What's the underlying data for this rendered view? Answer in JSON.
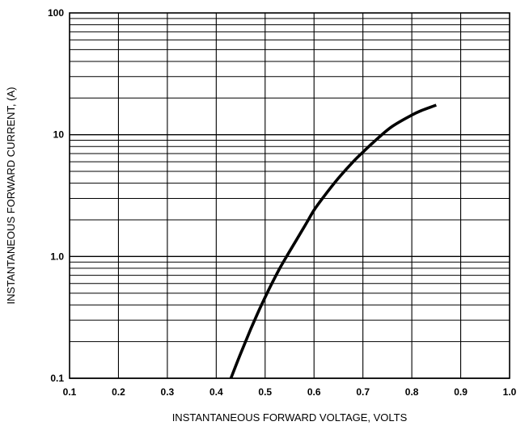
{
  "chart_data": {
    "type": "line",
    "xlabel": "INSTANTANEOUS FORWARD VOLTAGE, VOLTS",
    "ylabel": "INSTANTANEOUS  FORWARD CURRENT, (A)",
    "xlim": [
      0.1,
      1.0
    ],
    "ylim": [
      0.1,
      100
    ],
    "yscale": "log",
    "grid": true,
    "x_ticks": [
      "0.1",
      "0.2",
      "0.3",
      "0.4",
      "0.5",
      "0.6",
      "0.7",
      "0.8",
      "0.9",
      "1.0"
    ],
    "y_ticks": [
      {
        "value": 0.1,
        "label": "0.1"
      },
      {
        "value": 1,
        "label": "1.0"
      },
      {
        "value": 10,
        "label": "10"
      },
      {
        "value": 100,
        "label": "100"
      }
    ],
    "series": [
      {
        "x": [
          0.43,
          0.45,
          0.47,
          0.49,
          0.51,
          0.53,
          0.55,
          0.58,
          0.6,
          0.62,
          0.65,
          0.68,
          0.7,
          0.73,
          0.76,
          0.8,
          0.82,
          0.85
        ],
        "y": [
          0.1,
          0.16,
          0.25,
          0.38,
          0.56,
          0.8,
          1.1,
          1.75,
          2.4,
          3.1,
          4.4,
          6.0,
          7.2,
          9.3,
          11.7,
          14.5,
          15.8,
          17.5
        ]
      }
    ],
    "line_color": "#000000"
  }
}
